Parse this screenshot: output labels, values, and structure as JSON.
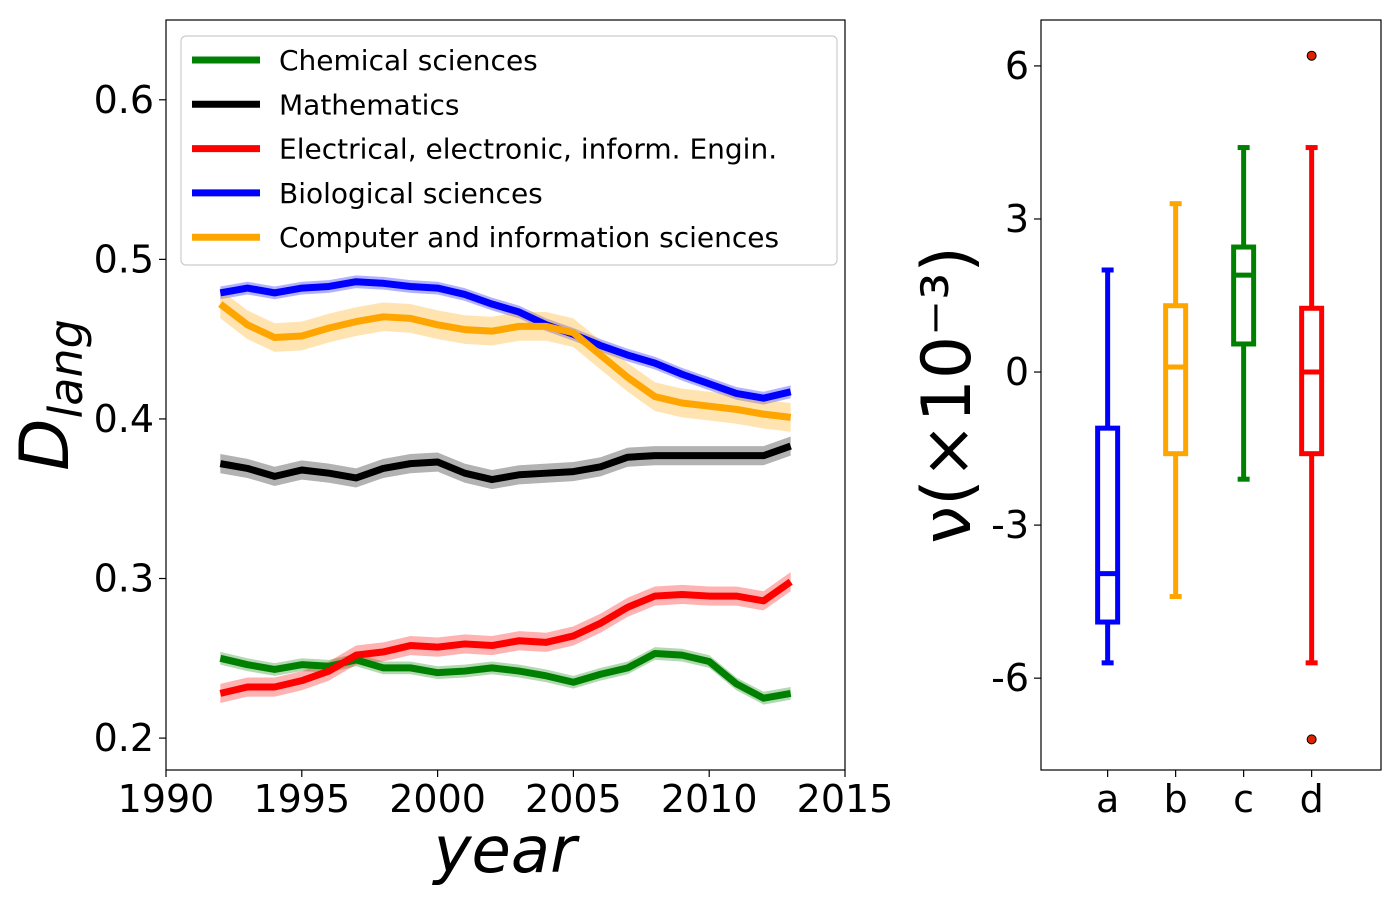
{
  "chart_data": [
    {
      "type": "line",
      "title": "",
      "xlabel": "year",
      "ylabel": "D",
      "ylabel_subscript": "lang",
      "xlim": [
        1990,
        2015
      ],
      "ylim": [
        0.18,
        0.65
      ],
      "x_ticks": [
        1990,
        1995,
        2000,
        2005,
        2010,
        2015
      ],
      "x_tick_labels": [
        "1990",
        "1995",
        "2000",
        "2005",
        "2010",
        "2015"
      ],
      "y_ticks": [
        0.2,
        0.3,
        0.4,
        0.5,
        0.6
      ],
      "y_tick_labels": [
        "0.2",
        "0.3",
        "0.4",
        "0.5",
        "0.6"
      ],
      "grid": false,
      "legend_position": "upper-left",
      "x": [
        1992,
        1993,
        1994,
        1995,
        1996,
        1997,
        1998,
        1999,
        2000,
        2001,
        2002,
        2003,
        2004,
        2005,
        2006,
        2007,
        2008,
        2009,
        2010,
        2011,
        2012,
        2013
      ],
      "series": [
        {
          "name": "Chemical sciences",
          "color": "#008000",
          "values": [
            0.25,
            0.246,
            0.243,
            0.246,
            0.245,
            0.249,
            0.244,
            0.244,
            0.241,
            0.242,
            0.244,
            0.242,
            0.239,
            0.235,
            0.24,
            0.244,
            0.253,
            0.252,
            0.248,
            0.234,
            0.225,
            0.228
          ],
          "band": 0.004
        },
        {
          "name": "Mathematics",
          "color": "#000000",
          "values": [
            0.372,
            0.369,
            0.364,
            0.368,
            0.366,
            0.363,
            0.369,
            0.372,
            0.373,
            0.366,
            0.362,
            0.365,
            0.366,
            0.367,
            0.37,
            0.376,
            0.377,
            0.377,
            0.377,
            0.377,
            0.377,
            0.383
          ],
          "band": 0.006
        },
        {
          "name": "Electrical, electronic, inform. Engin.",
          "color": "#ff0000",
          "values": [
            0.228,
            0.232,
            0.232,
            0.236,
            0.242,
            0.252,
            0.254,
            0.258,
            0.257,
            0.259,
            0.258,
            0.261,
            0.26,
            0.264,
            0.272,
            0.282,
            0.289,
            0.29,
            0.289,
            0.289,
            0.286,
            0.298
          ],
          "band": 0.006
        },
        {
          "name": "Biological sciences",
          "color": "#0000ff",
          "values": [
            0.479,
            0.482,
            0.479,
            0.482,
            0.483,
            0.486,
            0.485,
            0.483,
            0.482,
            0.478,
            0.472,
            0.467,
            0.459,
            0.453,
            0.446,
            0.44,
            0.435,
            0.428,
            0.422,
            0.416,
            0.413,
            0.417
          ],
          "band": 0.004
        },
        {
          "name": "Computer and information sciences",
          "color": "#ffa500",
          "values": [
            0.472,
            0.459,
            0.451,
            0.452,
            0.457,
            0.461,
            0.464,
            0.463,
            0.459,
            0.456,
            0.455,
            0.458,
            0.458,
            0.454,
            0.44,
            0.426,
            0.414,
            0.41,
            0.408,
            0.406,
            0.403,
            0.401
          ],
          "band": 0.009
        }
      ]
    },
    {
      "type": "box",
      "title": "",
      "xlabel": "",
      "ylabel": "ν(×10⁻³)",
      "ylim": [
        -7.8,
        6.9
      ],
      "y_ticks": [
        -6,
        -3,
        0,
        3,
        6
      ],
      "y_tick_labels": [
        "-6",
        "-3",
        "0",
        "3",
        "6"
      ],
      "categories": [
        "a",
        "b",
        "c",
        "d"
      ],
      "grid": false,
      "boxes": [
        {
          "label": "a",
          "color": "#0000ff",
          "whisker_low": -5.7,
          "q1": -4.9,
          "median": -3.95,
          "q3": -1.1,
          "whisker_high": 2.0,
          "fliers": []
        },
        {
          "label": "b",
          "color": "#ffa500",
          "whisker_low": -4.4,
          "q1": -1.6,
          "median": 0.1,
          "q3": 1.3,
          "whisker_high": 3.3,
          "fliers": []
        },
        {
          "label": "c",
          "color": "#008000",
          "whisker_low": -2.1,
          "q1": 0.55,
          "median": 1.9,
          "q3": 2.45,
          "whisker_high": 4.4,
          "fliers": []
        },
        {
          "label": "d",
          "color": "#ff0000",
          "whisker_low": -5.7,
          "q1": -1.6,
          "median": 0.0,
          "q3": 1.25,
          "whisker_high": 4.4,
          "fliers": [
            6.2,
            -7.2
          ]
        }
      ],
      "flier_color": "#dd2200"
    }
  ]
}
